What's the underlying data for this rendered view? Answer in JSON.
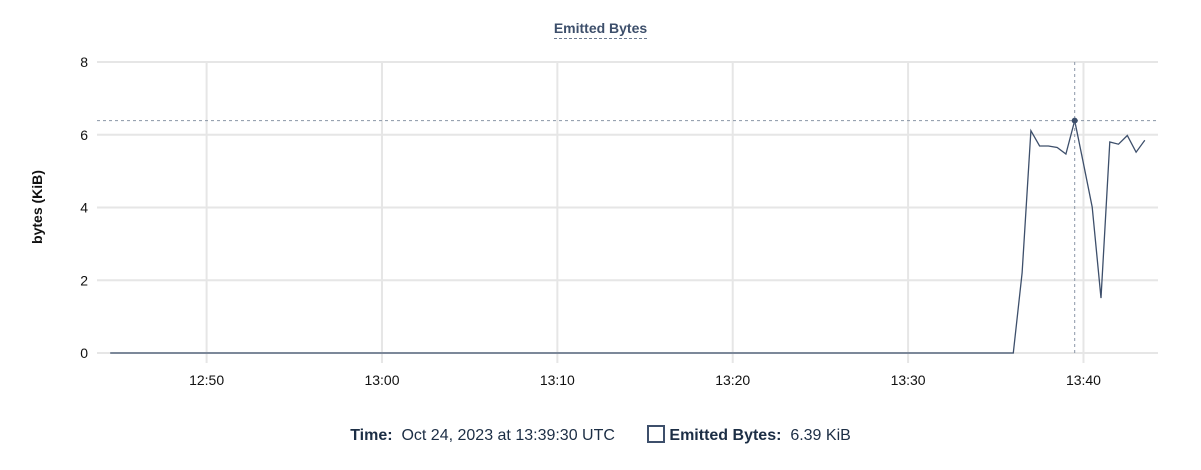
{
  "chart_data": {
    "type": "line",
    "title": "Emitted Bytes",
    "ylabel": "bytes (KiB)",
    "xlabel": "",
    "ylim": [
      0,
      8
    ],
    "xlim": [
      "12:43:45",
      "13:44:15"
    ],
    "yticks": [
      "0",
      "2",
      "4",
      "6",
      "8"
    ],
    "xticks": [
      "12:50",
      "13:00",
      "13:10",
      "13:20",
      "13:30",
      "13:40"
    ],
    "grid": true,
    "line_color": "#3d4f6b",
    "series": [
      {
        "name": "Emitted Bytes",
        "x": [
          "12:44:30",
          "13:36:00",
          "13:36:30",
          "13:37:00",
          "13:37:30",
          "13:38:00",
          "13:38:30",
          "13:39:00",
          "13:39:30",
          "13:40:00",
          "13:40:30",
          "13:41:00",
          "13:41:30",
          "13:42:00",
          "13:42:30",
          "13:43:00",
          "13:43:30"
        ],
        "values": [
          0,
          0,
          2.2,
          6.11,
          5.69,
          5.69,
          5.65,
          5.47,
          6.39,
          5.2,
          4.01,
          1.51,
          5.8,
          5.74,
          5.98,
          5.52,
          5.85
        ]
      }
    ],
    "crosshair": {
      "x": "13:39:30",
      "y": 6.39
    }
  },
  "tooltip": {
    "time_label": "Time:",
    "time_value": "Oct 24, 2023 at 13:39:30 UTC",
    "series_label": "Emitted Bytes:",
    "series_value": "6.39 KiB"
  }
}
